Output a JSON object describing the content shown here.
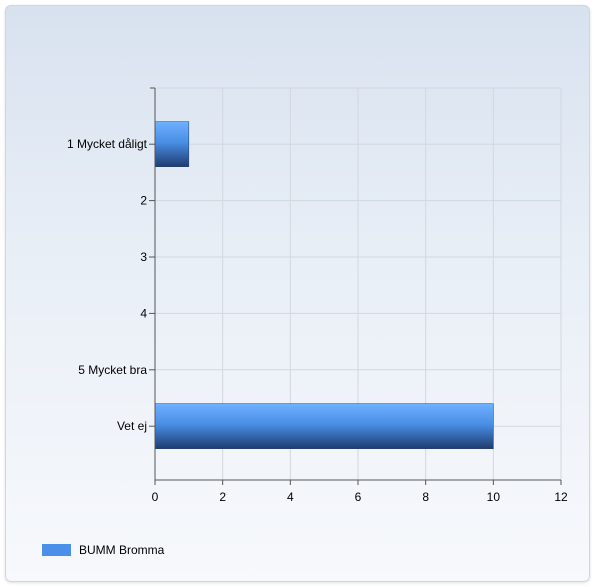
{
  "chart_data": {
    "type": "bar",
    "orientation": "horizontal",
    "title": "",
    "xlabel": "",
    "ylabel": "",
    "categories": [
      "1 Mycket dåligt",
      "2",
      "3",
      "4",
      "5 Mycket bra",
      "Vet ej"
    ],
    "series": [
      {
        "name": "BUMM Bromma",
        "values": [
          1,
          0,
          0,
          0,
          0,
          10
        ],
        "color": "#4a90e8"
      }
    ],
    "xlim": [
      0,
      12
    ],
    "xticks": [
      "0",
      "2",
      "4",
      "6",
      "8",
      "10",
      "12"
    ],
    "grid": true,
    "legend_position": "bottom-left"
  },
  "legend": {
    "label": "BUMM Bromma"
  }
}
